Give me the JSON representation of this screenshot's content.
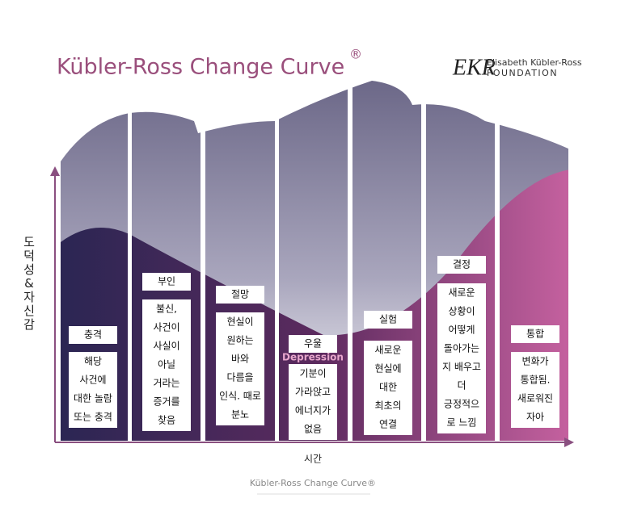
{
  "header": {
    "title": "Kübler-Ross Change Curve",
    "title_mark": "®",
    "logo_mark": "EKR",
    "logo_line1": "Elisabeth Kübler-Ross",
    "logo_line2": "FOUNDATION"
  },
  "axes": {
    "y_label": "도덕성&자신감",
    "x_label": "시간"
  },
  "caption": "Kübler-Ross Change Curve®",
  "stages": [
    {
      "title": "충격",
      "description": [
        "해당",
        "사건에",
        "대한 놀람",
        "또는 충격"
      ]
    },
    {
      "title": "부인",
      "description": [
        "불신,",
        "사건이",
        "사실이",
        "아닐",
        "거라는",
        "증거를",
        "찾음"
      ]
    },
    {
      "title": "절망",
      "description": [
        "현실이",
        "원하는",
        "바와",
        "다름을",
        "인식. 때로",
        "분노"
      ]
    },
    {
      "title": "우울",
      "english": "Depression",
      "description": [
        "기분이",
        "가라앉고",
        "에너지가",
        "없음"
      ]
    },
    {
      "title": "실험",
      "description": [
        "새로운",
        "현실에",
        "대한",
        "최초의",
        "연결"
      ]
    },
    {
      "title": "결정",
      "description": [
        "새로운",
        "상황이",
        "어떻게",
        "돌아가는",
        "지 배우고",
        "더",
        "긍정적으",
        "로 느낌"
      ]
    },
    {
      "title": "통합",
      "description": [
        "변화가",
        "통합됨.",
        "새로워진",
        "자아"
      ]
    }
  ]
}
